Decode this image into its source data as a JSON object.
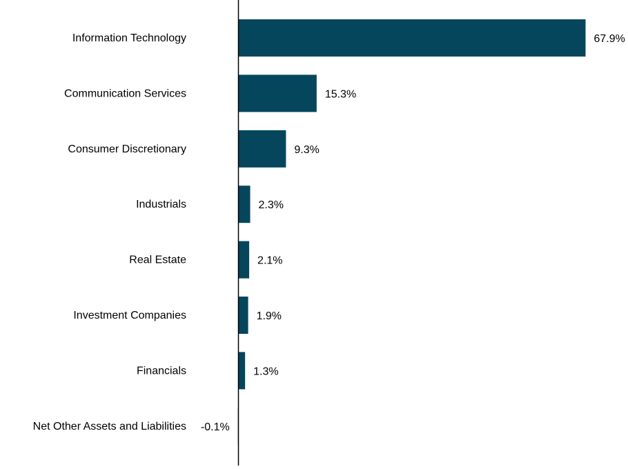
{
  "chart_data": {
    "type": "bar",
    "orientation": "horizontal",
    "title": "",
    "xlabel": "",
    "ylabel": "",
    "categories": [
      "Information Technology",
      "Communication Services",
      "Consumer Discretionary",
      "Industrials",
      "Real Estate",
      "Investment Companies",
      "Financials",
      "Net Other Assets and Liabilities"
    ],
    "values": [
      67.9,
      15.3,
      9.3,
      2.3,
      2.1,
      1.9,
      1.3,
      -0.1
    ],
    "value_labels": [
      "67.9%",
      "15.3%",
      "9.3%",
      "2.3%",
      "2.1%",
      "1.9%",
      "1.3%",
      "-0.1%"
    ],
    "grid": false,
    "legend": "none",
    "bar_color": "#06465C"
  }
}
